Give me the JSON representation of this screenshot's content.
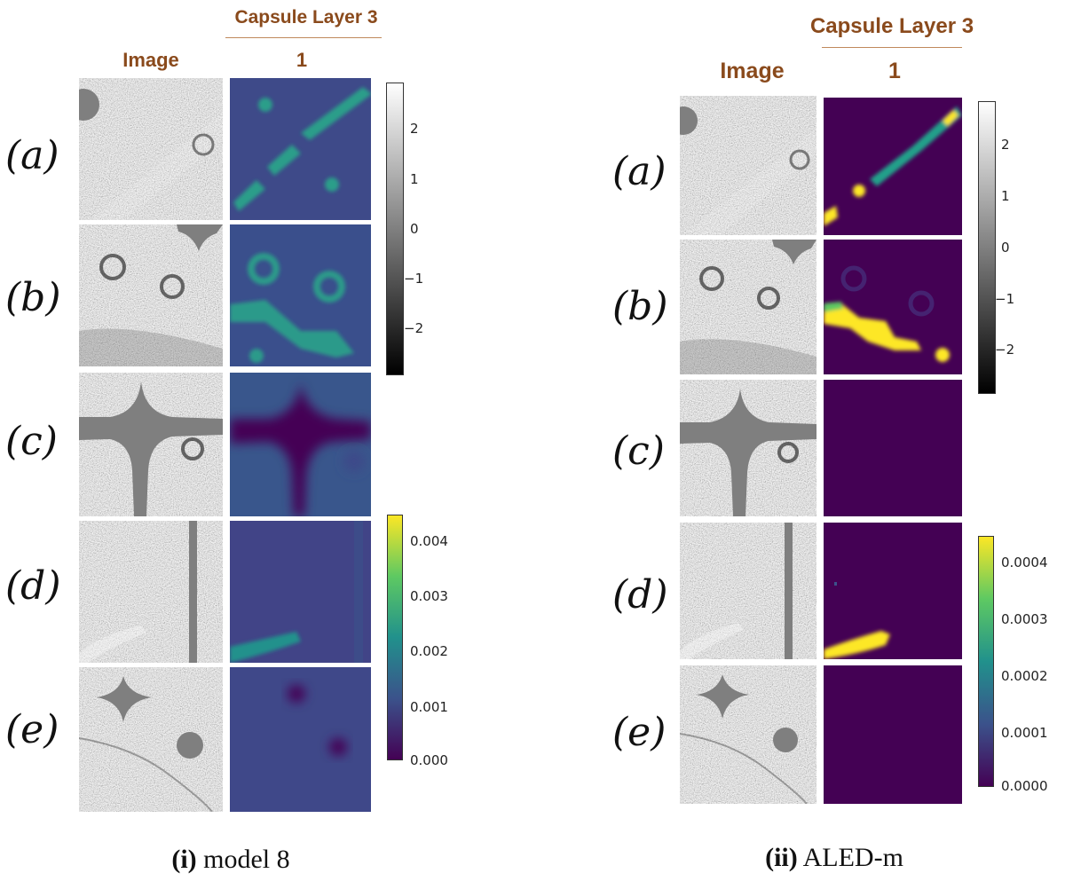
{
  "figures": [
    {
      "id": "model8",
      "layer_header": "Capsule Layer 3",
      "image_col_label": "Image",
      "capsule_col_label": "1",
      "rows": [
        "(a)",
        "(b)",
        "(c)",
        "(d)",
        "(e)"
      ],
      "gray_colorbar_ticks": [
        "2",
        "1",
        "0",
        "−1",
        "−2"
      ],
      "viridis_colorbar_ticks": [
        "0.004",
        "0.003",
        "0.002",
        "0.001",
        "0.000"
      ],
      "caption_bold": "(i)",
      "caption_text": " model 8"
    },
    {
      "id": "aledm",
      "layer_header": "Capsule Layer 3",
      "image_col_label": "Image",
      "capsule_col_label": "1",
      "rows": [
        "(a)",
        "(b)",
        "(c)",
        "(d)",
        "(e)"
      ],
      "gray_colorbar_ticks": [
        "2",
        "1",
        "0",
        "−1",
        "−2"
      ],
      "viridis_colorbar_ticks": [
        "0.0004",
        "0.0003",
        "0.0002",
        "0.0001",
        "0.0000"
      ],
      "caption_bold": "(ii)",
      "caption_text": " ALED-m"
    }
  ],
  "colors": {
    "header_brown": "#8a4a1c",
    "viridis_dark": "#440154",
    "viridis_yellow": "#fde725",
    "viridis_teal": "#21918c"
  }
}
